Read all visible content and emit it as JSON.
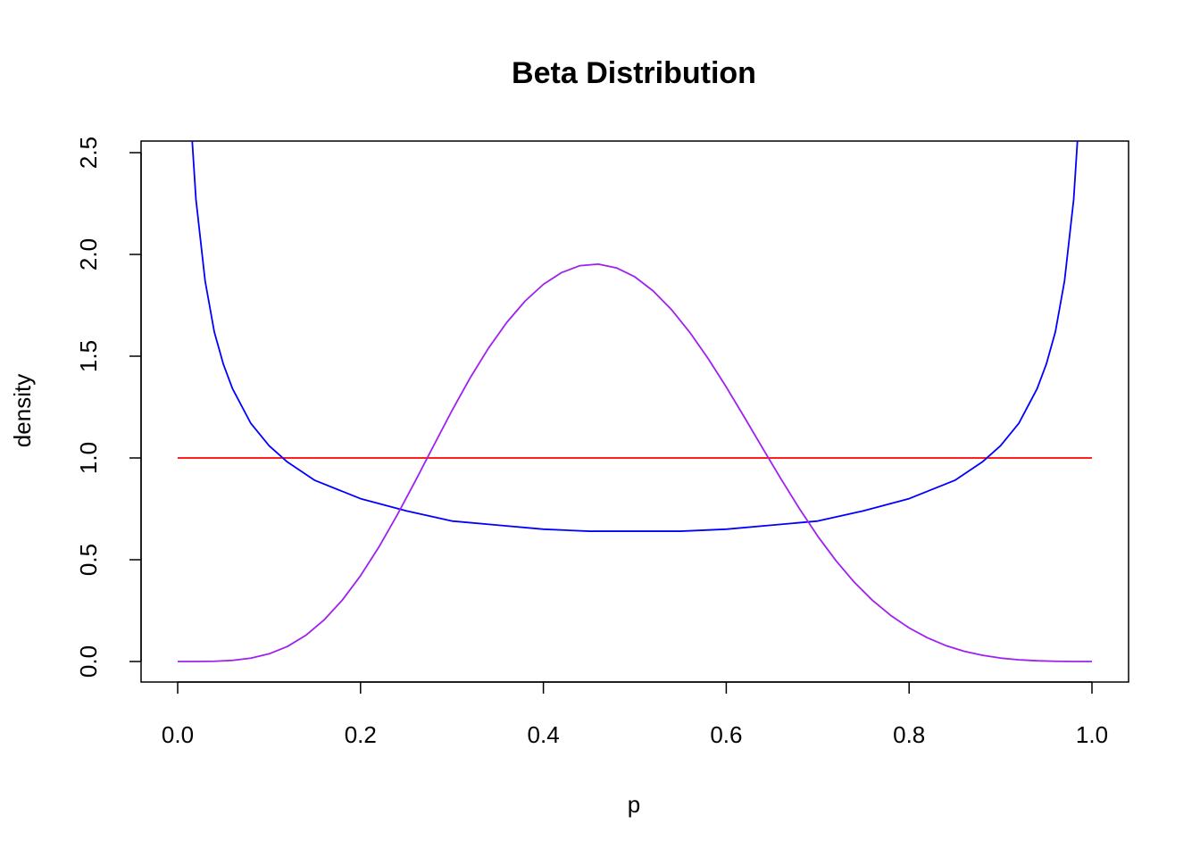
{
  "chart_data": {
    "type": "line",
    "title": "Beta Distribution",
    "xlabel": "p",
    "ylabel": "density",
    "xlim": [
      0.0,
      1.0
    ],
    "ylim": [
      0.0,
      2.5
    ],
    "x_ticks": [
      "0.0",
      "0.2",
      "0.4",
      "0.6",
      "0.8",
      "1.0"
    ],
    "y_ticks": [
      "0.0",
      "0.5",
      "1.0",
      "1.5",
      "2.0",
      "2.5"
    ],
    "grid": false,
    "legend": "none",
    "series": [
      {
        "color": "#ff0000",
        "x": [
          0.0,
          0.1,
          0.2,
          0.3,
          0.4,
          0.5,
          0.6,
          0.7,
          0.8,
          0.9,
          1.0
        ],
        "y": [
          1.0,
          1.0,
          1.0,
          1.0,
          1.0,
          1.0,
          1.0,
          1.0,
          1.0,
          1.0,
          1.0
        ]
      },
      {
        "color": "#0000ff",
        "x": [
          0.015,
          0.02,
          0.03,
          0.04,
          0.05,
          0.06,
          0.08,
          0.1,
          0.12,
          0.15,
          0.2,
          0.25,
          0.3,
          0.35,
          0.4,
          0.45,
          0.5,
          0.55,
          0.6,
          0.65,
          0.7,
          0.75,
          0.8,
          0.85,
          0.88,
          0.9,
          0.92,
          0.94,
          0.95,
          0.96,
          0.97,
          0.98,
          0.985
        ],
        "y": [
          2.62,
          2.27,
          1.87,
          1.62,
          1.46,
          1.34,
          1.17,
          1.06,
          0.98,
          0.89,
          0.8,
          0.74,
          0.69,
          0.67,
          0.65,
          0.64,
          0.64,
          0.64,
          0.65,
          0.67,
          0.69,
          0.74,
          0.8,
          0.89,
          0.98,
          1.06,
          1.17,
          1.34,
          1.46,
          1.62,
          1.87,
          2.27,
          2.62
        ]
      },
      {
        "color": "#a020f0",
        "x": [
          0.0,
          0.02,
          0.04,
          0.06,
          0.08,
          0.1,
          0.12,
          0.14,
          0.16,
          0.18,
          0.2,
          0.22,
          0.24,
          0.26,
          0.28,
          0.3,
          0.32,
          0.34,
          0.36,
          0.38,
          0.4,
          0.42,
          0.44,
          0.46,
          0.48,
          0.5,
          0.52,
          0.54,
          0.56,
          0.58,
          0.6,
          0.62,
          0.64,
          0.66,
          0.68,
          0.7,
          0.72,
          0.74,
          0.76,
          0.78,
          0.8,
          0.82,
          0.84,
          0.86,
          0.88,
          0.9,
          0.92,
          0.94,
          0.96,
          0.98,
          1.0
        ],
        "y": [
          0.0,
          0.0001,
          0.0012,
          0.0055,
          0.0163,
          0.0376,
          0.0737,
          0.1281,
          0.2035,
          0.3014,
          0.4214,
          0.5618,
          0.7188,
          0.8873,
          1.0609,
          1.2325,
          1.3942,
          1.5398,
          1.6661,
          1.7708,
          1.853,
          1.911,
          1.9448,
          1.9523,
          1.9338,
          1.8899,
          1.8208,
          1.7294,
          1.6178,
          1.4898,
          1.3485,
          1.1989,
          1.0463,
          0.896,
          0.751,
          0.6161,
          0.4952,
          0.3897,
          0.3002,
          0.2259,
          0.1651,
          0.1164,
          0.0786,
          0.0506,
          0.0306,
          0.0168,
          0.0083,
          0.0035,
          0.0012,
          0.0001,
          0.0
        ]
      }
    ]
  }
}
